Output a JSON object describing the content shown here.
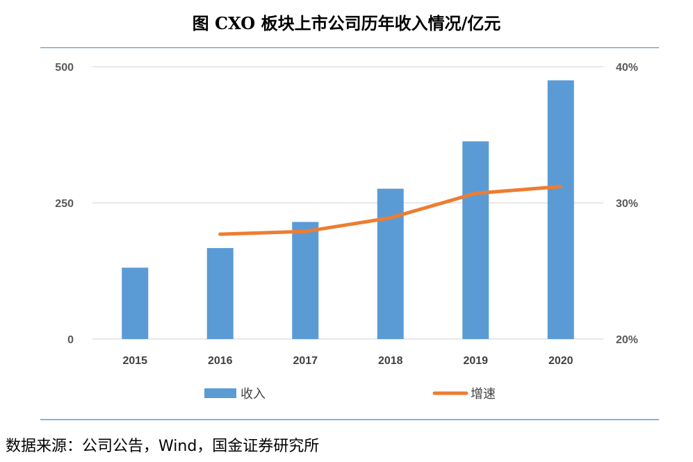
{
  "title": "图 CXO 板块上市公司历年收入情况/亿元",
  "source": "数据来源：公司公告，Wind，国金证券研究所",
  "colors": {
    "bar": "#5B9BD5",
    "line": "#ED7D31",
    "grid": "#d9d9d9",
    "frame": "#5B9BD5"
  },
  "chart_data": {
    "type": "bar",
    "categories": [
      "2015",
      "2016",
      "2017",
      "2018",
      "2019",
      "2020"
    ],
    "series": [
      {
        "name": "收入",
        "type": "bar",
        "axis": "left",
        "values": [
          131,
          167,
          215,
          276,
          363,
          475
        ]
      },
      {
        "name": "增速",
        "type": "line",
        "axis": "right",
        "values": [
          null,
          0.277,
          0.279,
          0.289,
          0.307,
          0.312
        ]
      }
    ],
    "y_left": {
      "lim": [
        0,
        500
      ],
      "ticks": [
        "0",
        "250",
        "500"
      ],
      "tick_values": [
        0,
        250,
        500
      ]
    },
    "y_right": {
      "lim": [
        0.2,
        0.4
      ],
      "ticks": [
        "20%",
        "30%",
        "40%"
      ],
      "tick_values": [
        0.2,
        0.3,
        0.4
      ]
    },
    "grid": true,
    "legend": "bottom"
  }
}
